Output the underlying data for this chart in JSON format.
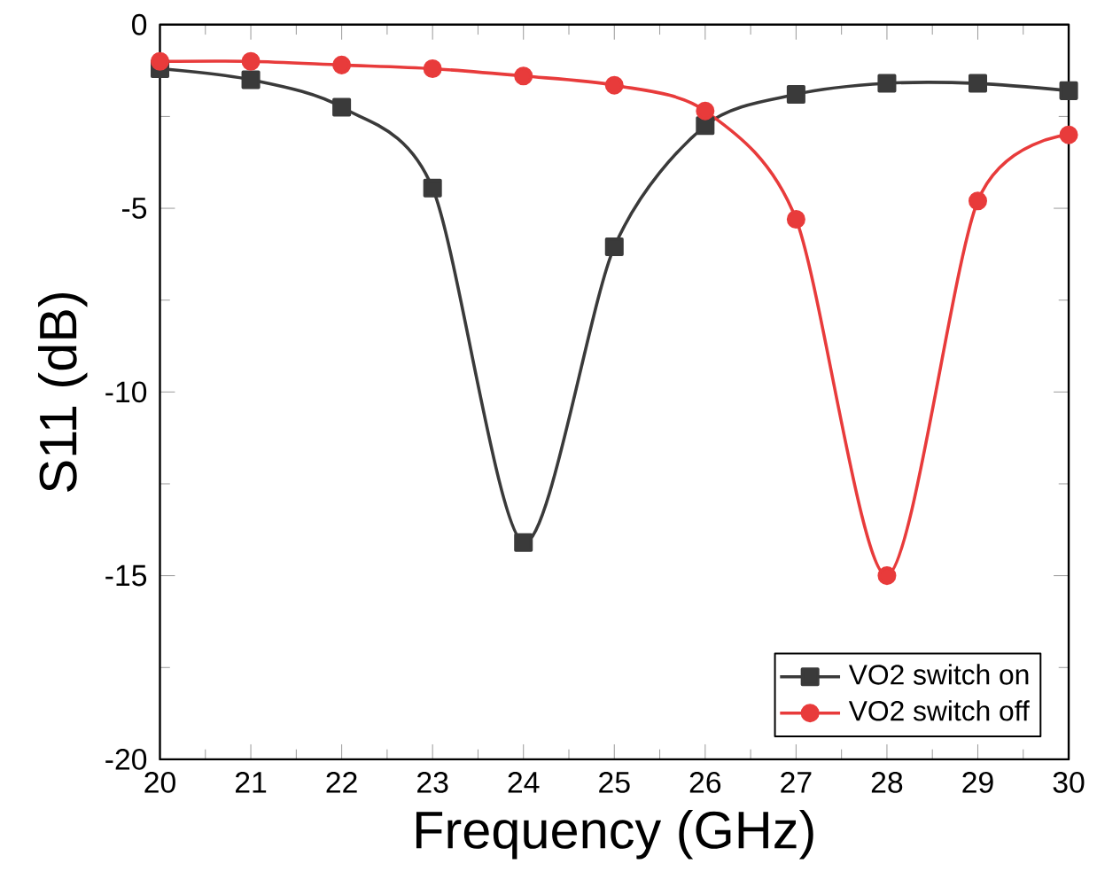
{
  "chart_data": {
    "type": "line",
    "xlabel": "Frequency (GHz)",
    "ylabel": "S11 (dB)",
    "x": [
      20,
      21,
      22,
      23,
      24,
      25,
      26,
      27,
      28,
      29,
      30
    ],
    "xlim": [
      20,
      30
    ],
    "xticks": [
      20,
      21,
      22,
      23,
      24,
      25,
      26,
      27,
      28,
      29,
      30
    ],
    "ylim": [
      -20,
      0
    ],
    "yticks": [
      -20,
      -15,
      -10,
      -5,
      0
    ],
    "legend": "bottom right",
    "series": [
      {
        "name": "VO2 switch on",
        "color": "#3a3a3a",
        "marker": "square",
        "values": [
          -1.2,
          -1.5,
          -2.25,
          -4.45,
          -14.1,
          -6.05,
          -2.75,
          -1.9,
          -1.6,
          -1.6,
          -1.8
        ]
      },
      {
        "name": "VO2 switch off",
        "color": "#e83b3b",
        "marker": "circle",
        "values": [
          -1.0,
          -1.0,
          -1.1,
          -1.2,
          -1.4,
          -1.65,
          -2.35,
          -5.3,
          -15.0,
          -4.8,
          -3.0
        ]
      }
    ]
  }
}
